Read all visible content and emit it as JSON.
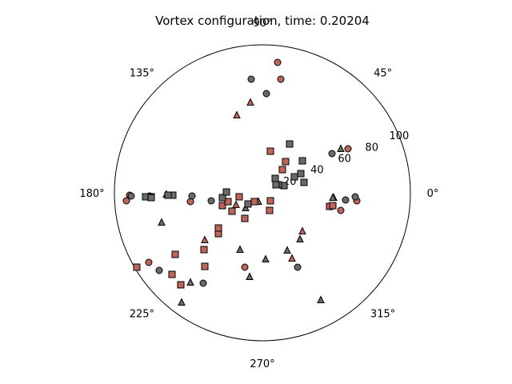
{
  "chart_data": {
    "type": "scatter",
    "projection": "polar",
    "title": "Vortex configuration, time: 0.20204",
    "theta_tick_labels": [
      "0°",
      "45°",
      "90°",
      "135°",
      "180°",
      "225°",
      "270°",
      "315°"
    ],
    "theta_tick_degrees": [
      0,
      45,
      90,
      135,
      180,
      225,
      270,
      315
    ],
    "r_tick_labels": [
      "20",
      "40",
      "60",
      "80",
      "100"
    ],
    "r_tick_values": [
      20,
      40,
      60,
      80,
      100
    ],
    "r_label_angle_deg": 22.5,
    "rlim": [
      0,
      100
    ],
    "grid": false,
    "series": [
      {
        "marker": "circle",
        "color": "#c0645a",
        "points": [
          [
            107,
            55
          ],
          [
            -142,
            -87
          ],
          [
            19,
            163
          ],
          [
            23,
            142
          ],
          [
            -22,
            -93
          ],
          [
            98,
            -22
          ],
          [
            -90,
            -11
          ],
          [
            -166,
            -3
          ],
          [
            -141,
            -4
          ],
          [
            118,
            -10
          ],
          [
            -170,
            -10
          ]
        ]
      },
      {
        "marker": "circle",
        "color": "#6a6a6a",
        "points": [
          [
            87,
            49
          ],
          [
            -129,
            -97
          ],
          [
            -14,
            142
          ],
          [
            5,
            124
          ],
          [
            -64,
            -10
          ],
          [
            -74,
            -113
          ],
          [
            44,
            -93
          ],
          [
            -88,
            -4
          ],
          [
            116,
            -5
          ],
          [
            104,
            -9
          ],
          [
            -164,
            -4
          ]
        ]
      },
      {
        "marker": "triangle",
        "color": "#c0645a",
        "points": [
          [
            -32,
            97
          ],
          [
            -15,
            113
          ],
          [
            -120,
            -2
          ],
          [
            -33,
            -15
          ],
          [
            37,
            -82
          ],
          [
            89,
            -6
          ],
          [
            -72,
            -59
          ],
          [
            50,
            -48
          ]
        ]
      },
      {
        "marker": "triangle",
        "color": "#6a6a6a",
        "points": [
          [
            47,
            -58
          ],
          [
            -21,
            -19
          ],
          [
            -5,
            -11
          ],
          [
            -16,
            -105
          ],
          [
            4,
            -83
          ],
          [
            -90,
            -112
          ],
          [
            88,
            -6
          ],
          [
            31,
            -72
          ],
          [
            73,
            -134
          ],
          [
            -101,
            -137
          ],
          [
            -126,
            -37
          ],
          [
            -28,
            -71
          ],
          [
            98,
            55
          ]
        ]
      },
      {
        "marker": "square",
        "color": "#c0645a",
        "points": [
          [
            -102,
            -115
          ],
          [
            -109,
            -77
          ],
          [
            -157,
            -93
          ],
          [
            -113,
            -102
          ],
          [
            -50,
            -16
          ],
          [
            -43,
            -11
          ],
          [
            -29,
            -5
          ],
          [
            -72,
            -92
          ],
          [
            -73,
            -71
          ],
          [
            -55,
            -51
          ],
          [
            -55,
            -44
          ],
          [
            -38,
            -23
          ],
          [
            -22,
            -32
          ],
          [
            29,
            39
          ],
          [
            10,
            52
          ],
          [
            -10,
            -11
          ],
          [
            84,
            -17
          ],
          [
            88,
            -16
          ],
          [
            10,
            -10
          ],
          [
            -139,
            -5
          ],
          [
            25,
            29
          ],
          [
            9,
            -22
          ]
        ]
      },
      {
        "marker": "square",
        "color": "#6a6a6a",
        "points": [
          [
            -50,
            -6
          ],
          [
            -45,
            1
          ],
          [
            -112,
            -3
          ],
          [
            -118,
            -3
          ],
          [
            -146,
            -5
          ],
          [
            -139,
            -6
          ],
          [
            50,
            40
          ],
          [
            34,
            61
          ],
          [
            27,
            9
          ],
          [
            20,
            10
          ],
          [
            16,
            18
          ],
          [
            40,
            20
          ],
          [
            48,
            24
          ],
          [
            52,
            13
          ],
          [
            17,
            10
          ],
          [
            -18,
            -14
          ]
        ]
      }
    ]
  }
}
